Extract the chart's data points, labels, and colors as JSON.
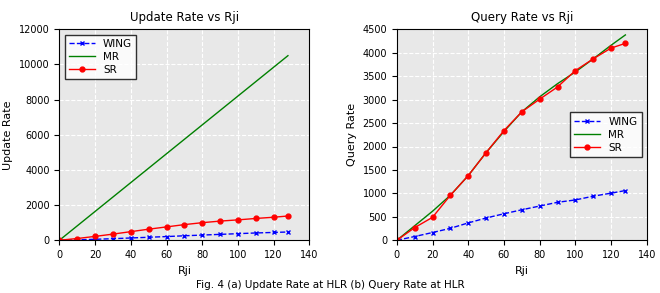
{
  "plot_a": {
    "title": "Update Rate vs Rji",
    "xlabel": "Rji",
    "ylabel": "Update Rate",
    "xlim": [
      0,
      140
    ],
    "ylim": [
      0,
      12000
    ],
    "yticks": [
      0,
      2000,
      4000,
      6000,
      8000,
      10000,
      12000
    ],
    "xticks": [
      0,
      20,
      40,
      60,
      80,
      100,
      120,
      140
    ],
    "series": {
      "WING": {
        "x": [
          0,
          10,
          20,
          30,
          40,
          50,
          60,
          70,
          80,
          90,
          100,
          110,
          120,
          128
        ],
        "y": [
          0,
          25,
          55,
          90,
          130,
          170,
          210,
          255,
          295,
          335,
          375,
          415,
          445,
          470
        ],
        "color": "blue",
        "linestyle": "--",
        "marker": "x"
      },
      "MR": {
        "x": [
          0,
          128
        ],
        "y": [
          0,
          10500
        ],
        "color": "green",
        "linestyle": "-",
        "marker": null
      },
      "SR": {
        "x": [
          0,
          10,
          20,
          30,
          40,
          50,
          60,
          70,
          80,
          90,
          100,
          110,
          120,
          128
        ],
        "y": [
          0,
          100,
          220,
          350,
          490,
          630,
          760,
          890,
          1000,
          1090,
          1160,
          1240,
          1310,
          1380
        ],
        "color": "red",
        "linestyle": "-",
        "marker": "o"
      }
    },
    "legend_loc": "upper left",
    "label": "(a)"
  },
  "plot_b": {
    "title": "Query Rate vs Rji",
    "xlabel": "Rji",
    "ylabel": "Query Rate",
    "xlim": [
      0,
      140
    ],
    "ylim": [
      0,
      4500
    ],
    "yticks": [
      0,
      500,
      1000,
      1500,
      2000,
      2500,
      3000,
      3500,
      4000,
      4500
    ],
    "xticks": [
      0,
      20,
      40,
      60,
      80,
      100,
      120,
      140
    ],
    "series": {
      "WING": {
        "x": [
          0,
          10,
          20,
          30,
          40,
          50,
          60,
          70,
          80,
          90,
          100,
          110,
          120,
          128
        ],
        "y": [
          0,
          80,
          165,
          255,
          370,
          475,
          565,
          650,
          730,
          810,
          860,
          940,
          1005,
          1060
        ],
        "color": "blue",
        "linestyle": "--",
        "marker": "x"
      },
      "MR": {
        "x": [
          0,
          10,
          20,
          30,
          40,
          50,
          60,
          70,
          80,
          90,
          100,
          110,
          120,
          128
        ],
        "y": [
          0,
          310,
          620,
          960,
          1380,
          1870,
          2320,
          2740,
          3060,
          3340,
          3590,
          3870,
          4160,
          4380
        ],
        "color": "green",
        "linestyle": "-",
        "marker": null
      },
      "SR": {
        "x": [
          0,
          10,
          20,
          30,
          40,
          50,
          60,
          70,
          80,
          90,
          100,
          110,
          120,
          128
        ],
        "y": [
          0,
          270,
          490,
          960,
          1380,
          1870,
          2340,
          2740,
          3010,
          3270,
          3620,
          3870,
          4100,
          4200
        ],
        "color": "red",
        "linestyle": "-",
        "marker": "o"
      }
    },
    "legend_loc": "center right",
    "label": "(b)"
  },
  "figure_caption": "Fig. 4 (a) Update Rate at HLR (b) Query Rate at HLR",
  "bg_color": "#e8e8e8",
  "grid_color": "white",
  "caption_fontsize": 7.5,
  "label_fontsize": 8,
  "tick_fontsize": 7,
  "title_fontsize": 8.5,
  "legend_fontsize": 7.5,
  "marker_size": 3.5,
  "line_width": 1.0
}
